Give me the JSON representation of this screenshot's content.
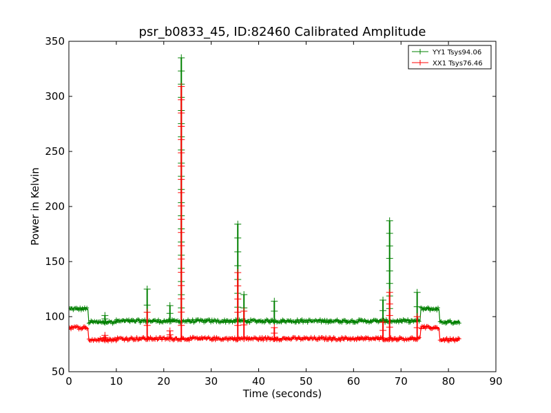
{
  "chart_data": {
    "type": "line",
    "title": "psr_b0833_45, ID:82460 Calibrated Amplitude",
    "xlabel": "Time (seconds)",
    "ylabel": "Power in Kelvin",
    "xlim": [
      0,
      90
    ],
    "ylim": [
      50,
      350
    ],
    "xticks": [
      0,
      10,
      20,
      30,
      40,
      50,
      60,
      70,
      80,
      90
    ],
    "yticks": [
      50,
      100,
      150,
      200,
      250,
      300,
      350
    ],
    "grid": false,
    "legend_position": "top-right",
    "series": [
      {
        "name": "YY1 Tsys94.06",
        "color": "#008000",
        "marker": "+",
        "baseline_segments": [
          {
            "x_start": 0.2,
            "x_end": 4.0,
            "y": 107
          },
          {
            "x_start": 4.2,
            "x_end": 10.0,
            "y": 95
          },
          {
            "x_start": 10.0,
            "x_end": 74.0,
            "y": 96
          },
          {
            "x_start": 74.2,
            "x_end": 78.0,
            "y": 107
          },
          {
            "x_start": 78.2,
            "x_end": 82.5,
            "y": 95
          }
        ],
        "spikes": [
          {
            "x": 7.6,
            "y": 101
          },
          {
            "x": 16.5,
            "y": 125
          },
          {
            "x": 21.3,
            "y": 110
          },
          {
            "x": 23.7,
            "y": 335
          },
          {
            "x": 35.6,
            "y": 184
          },
          {
            "x": 36.9,
            "y": 120
          },
          {
            "x": 43.3,
            "y": 114
          },
          {
            "x": 66.2,
            "y": 115
          },
          {
            "x": 67.6,
            "y": 187
          },
          {
            "x": 73.4,
            "y": 122
          }
        ]
      },
      {
        "name": "XX1 Tsys76.46",
        "color": "#ff0000",
        "marker": "+",
        "baseline_segments": [
          {
            "x_start": 0.2,
            "x_end": 4.0,
            "y": 90
          },
          {
            "x_start": 4.2,
            "x_end": 10.0,
            "y": 79
          },
          {
            "x_start": 10.0,
            "x_end": 74.0,
            "y": 80
          },
          {
            "x_start": 74.2,
            "x_end": 78.0,
            "y": 90
          },
          {
            "x_start": 78.2,
            "x_end": 82.5,
            "y": 79
          }
        ],
        "spikes": [
          {
            "x": 7.6,
            "y": 83
          },
          {
            "x": 16.5,
            "y": 104
          },
          {
            "x": 21.3,
            "y": 87
          },
          {
            "x": 23.7,
            "y": 309
          },
          {
            "x": 35.6,
            "y": 140
          },
          {
            "x": 36.9,
            "y": 105
          },
          {
            "x": 43.3,
            "y": 90
          },
          {
            "x": 66.2,
            "y": 95
          },
          {
            "x": 67.6,
            "y": 122
          },
          {
            "x": 73.4,
            "y": 100
          }
        ]
      }
    ]
  }
}
